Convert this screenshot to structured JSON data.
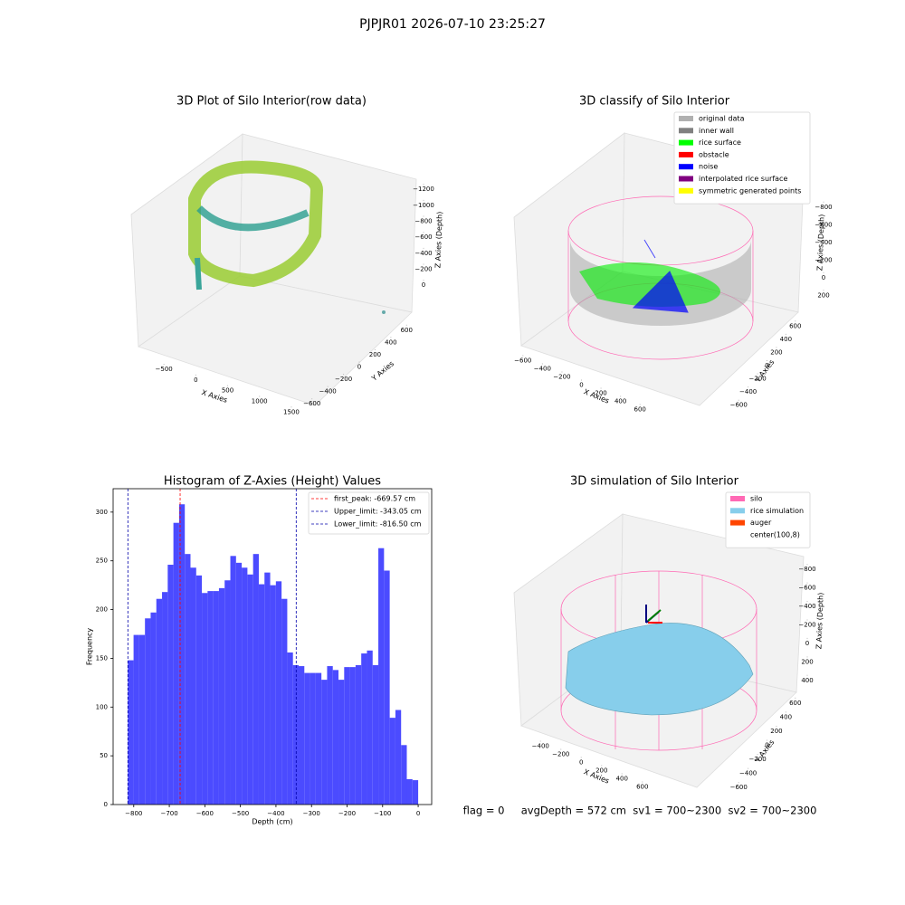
{
  "title": "PJPJR01 2026-07-10 23:25:27",
  "footer": "flag = 0     avgDepth = 572 cm  sv1 = 700~2300  sv2 = 700~2300",
  "chart_data": [
    {
      "type": "scatter3d",
      "title": "3D Plot of Silo Interior(row data)",
      "xlabel": "X Axies",
      "ylabel": "Y Axies",
      "zlabel": "Z Axies (Depth)",
      "xlim": [
        -800,
        1700
      ],
      "xticks": [
        -500,
        0,
        500,
        1000,
        1500
      ],
      "ylim": [
        -700,
        700
      ],
      "yticks": [
        -600,
        -400,
        -200,
        0,
        200,
        400,
        600
      ],
      "zlim": [
        -1350,
        100
      ],
      "zticks": [
        0,
        -200,
        -400,
        -600,
        -800,
        -1000,
        -1200
      ]
    },
    {
      "type": "scatter3d",
      "title": "3D classify of Silo Interior",
      "xlabel": "X Axies",
      "ylabel": "Y Axies",
      "zlabel": "Z Axies (Depth)",
      "xlim": [
        -700,
        700
      ],
      "xticks": [
        -600,
        -400,
        -200,
        0,
        200,
        400,
        600
      ],
      "ylim": [
        -700,
        700
      ],
      "yticks": [
        -600,
        -400,
        -200,
        0,
        200,
        400,
        600
      ],
      "zlim": [
        -900,
        300
      ],
      "zticks": [
        200,
        0,
        -200,
        -400,
        -600,
        -800
      ],
      "legend": [
        {
          "name": "original data",
          "color": "#b0b0b0"
        },
        {
          "name": "inner wall",
          "color": "#808080"
        },
        {
          "name": "rice surface",
          "color": "#00ff00"
        },
        {
          "name": "obstacle",
          "color": "#ff0000"
        },
        {
          "name": "noise",
          "color": "#0000ff"
        },
        {
          "name": "interpolated rice surface",
          "color": "#800080"
        },
        {
          "name": "symmetric generated points",
          "color": "#ffff00"
        }
      ]
    },
    {
      "type": "histogram",
      "title": "Histogram of Z-Axies (Height) Values",
      "xlabel": "Depth (cm)",
      "ylabel": "Frequency",
      "color": "#4b4bff",
      "bins": [
        -816.5,
        -800.49,
        -784.48,
        -768.47,
        -752.46,
        -736.45,
        -720.44,
        -704.43,
        -688.42,
        -672.41,
        -656.4,
        -640.39,
        -624.38,
        -608.37,
        -592.36,
        -576.35,
        -560.34,
        -544.33,
        -528.32,
        -512.31,
        -496.3,
        -480.29,
        -464.28,
        -448.27,
        -432.26,
        -416.25,
        -400.24,
        -384.23,
        -368.22,
        -352.21,
        -336.2,
        -320.19,
        -304.18,
        -288.17,
        -272.16,
        -256.15,
        -240.14,
        -224.13,
        -208.12,
        -192.11,
        -176.1,
        -160.09,
        -144.08,
        -128.07,
        -112.06,
        -96.05,
        -80.04,
        -64.03,
        -48.02,
        -32.01,
        -16.0,
        0.01
      ],
      "values": [
        148,
        174,
        174,
        191,
        197,
        211,
        218,
        246,
        289,
        308,
        257,
        243,
        235,
        217,
        219,
        219,
        222,
        230,
        255,
        248,
        243,
        236,
        257,
        226,
        238,
        225,
        229,
        211,
        156,
        143,
        142,
        135,
        135,
        135,
        128,
        142,
        138,
        128,
        141,
        141,
        143,
        155,
        158,
        143,
        263,
        240,
        89,
        97,
        61,
        26,
        25
      ],
      "xlim": [
        -858,
        38
      ],
      "xticks": [
        -800,
        -700,
        -600,
        -500,
        -400,
        -300,
        -200,
        -100,
        0
      ],
      "ylim": [
        0,
        324
      ],
      "yticks": [
        0,
        50,
        100,
        150,
        200,
        250,
        300
      ],
      "lines": [
        {
          "value": -669.57,
          "label": "first_peak: -669.57 cm",
          "color": "#ff0000"
        },
        {
          "value": -343.05,
          "label": "Upper_limit: -343.05 cm",
          "color": "#0000aa"
        },
        {
          "value": -816.5,
          "label": "Lower_limit: -816.50 cm",
          "color": "#0000aa"
        }
      ]
    },
    {
      "type": "scatter3d",
      "title": "3D simulation of Silo Interior",
      "xlabel": "X Axies",
      "ylabel": "Y Axies",
      "zlabel": "Z Axies (Depth)",
      "xlim": [
        -500,
        700
      ],
      "xticks": [
        -400,
        -200,
        0,
        200,
        400,
        600
      ],
      "ylim": [
        -700,
        700
      ],
      "yticks": [
        -600,
        -400,
        -200,
        0,
        200,
        400,
        600
      ],
      "zlim": [
        -900,
        500
      ],
      "zticks": [
        400,
        200,
        0,
        -200,
        -400,
        -600,
        -800
      ],
      "legend": [
        {
          "name": "silo",
          "color": "#ff69b4"
        },
        {
          "name": "rice simulation",
          "color": "#87ceeb"
        },
        {
          "name": "auger",
          "color": "#ff4500"
        },
        {
          "name": "center(100,8)",
          "color": "#ffffff"
        }
      ]
    }
  ]
}
